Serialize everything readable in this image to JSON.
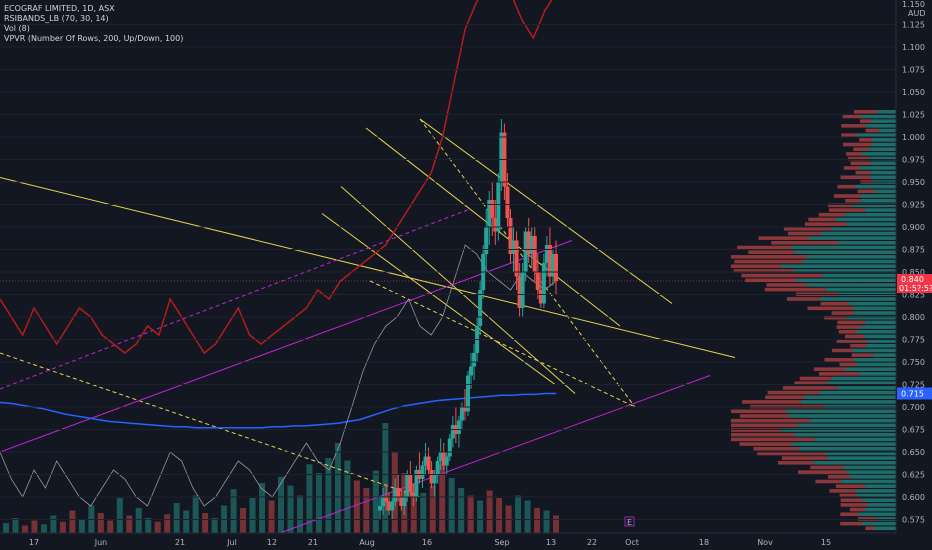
{
  "legend": {
    "title": "ECOGRAF LIMITED, 1D, ASX",
    "rsi_bands": "RSIBANDS_LB (70, 30, 14)",
    "vol": "Vol (8)",
    "vpvr": "VPVR (Number Of Rows, 200, Up/Down, 100)"
  },
  "axis": {
    "currency": "AUD",
    "top_label": "1.150"
  },
  "price_badges": {
    "last": {
      "value": "0.840",
      "countdown": "01:5?:5?",
      "color": "#f23645"
    },
    "ma": {
      "value": "0.715",
      "color": "#2962ff"
    }
  },
  "event_marker": "E",
  "colors": {
    "background": "#131722",
    "up": "#26a69a",
    "down": "#ef5350",
    "rsi_band": "#b71c1c",
    "ma": "#2962ff",
    "trend_yellow": "#e8d44d",
    "trend_magenta": "#c026d3",
    "rsi_line": "#9598a1"
  },
  "chart_data": {
    "type": "candlestick",
    "ylim": [
      0.56,
      1.15
    ],
    "y_ticks": [
      "0.575",
      "0.600",
      "0.625",
      "0.650",
      "0.675",
      "0.700",
      "0.725",
      "0.750",
      "0.775",
      "0.800",
      "0.825",
      "0.850",
      "0.875",
      "0.900",
      "0.925",
      "0.950",
      "0.975",
      "1.000",
      "1.025",
      "1.050",
      "1.075",
      "1.100",
      "1.125"
    ],
    "x_ticks": [
      "17",
      "Jun",
      "21",
      "Jul",
      "12",
      "21",
      "Aug",
      "16",
      "Sep",
      "13",
      "22",
      "Oct",
      "18",
      "Nov",
      "15"
    ],
    "candles": [
      [
        0.585,
        0.6,
        0.575,
        0.59
      ],
      [
        0.59,
        0.61,
        0.58,
        0.6
      ],
      [
        0.6,
        0.615,
        0.585,
        0.595
      ],
      [
        0.595,
        0.605,
        0.58,
        0.585
      ],
      [
        0.585,
        0.6,
        0.575,
        0.595
      ],
      [
        0.595,
        0.62,
        0.59,
        0.61
      ],
      [
        0.61,
        0.625,
        0.595,
        0.6
      ],
      [
        0.6,
        0.61,
        0.585,
        0.59
      ],
      [
        0.59,
        0.605,
        0.58,
        0.6
      ],
      [
        0.6,
        0.63,
        0.595,
        0.625
      ],
      [
        0.625,
        0.64,
        0.6,
        0.605
      ],
      [
        0.605,
        0.615,
        0.59,
        0.6
      ],
      [
        0.6,
        0.635,
        0.595,
        0.63
      ],
      [
        0.63,
        0.65,
        0.615,
        0.62
      ],
      [
        0.62,
        0.64,
        0.61,
        0.635
      ],
      [
        0.635,
        0.66,
        0.625,
        0.645
      ],
      [
        0.645,
        0.655,
        0.625,
        0.63
      ],
      [
        0.63,
        0.64,
        0.61,
        0.615
      ],
      [
        0.615,
        0.63,
        0.6,
        0.625
      ],
      [
        0.625,
        0.645,
        0.615,
        0.64
      ],
      [
        0.64,
        0.665,
        0.63,
        0.65
      ],
      [
        0.65,
        0.66,
        0.63,
        0.635
      ],
      [
        0.635,
        0.65,
        0.625,
        0.645
      ],
      [
        0.645,
        0.67,
        0.64,
        0.665
      ],
      [
        0.665,
        0.69,
        0.655,
        0.68
      ],
      [
        0.68,
        0.7,
        0.66,
        0.67
      ],
      [
        0.67,
        0.69,
        0.655,
        0.685
      ],
      [
        0.685,
        0.705,
        0.675,
        0.7
      ],
      [
        0.7,
        0.72,
        0.685,
        0.695
      ],
      [
        0.695,
        0.74,
        0.69,
        0.735
      ],
      [
        0.735,
        0.76,
        0.72,
        0.745
      ],
      [
        0.745,
        0.77,
        0.73,
        0.76
      ],
      [
        0.76,
        0.8,
        0.75,
        0.79
      ],
      [
        0.79,
        0.84,
        0.78,
        0.83
      ],
      [
        0.83,
        0.88,
        0.82,
        0.87
      ],
      [
        0.87,
        0.92,
        0.85,
        0.9
      ],
      [
        0.9,
        0.94,
        0.88,
        0.93
      ],
      [
        0.93,
        0.95,
        0.89,
        0.91
      ],
      [
        0.91,
        0.93,
        0.88,
        0.895
      ],
      [
        0.895,
        0.96,
        0.885,
        0.95
      ],
      [
        0.95,
        1.02,
        0.94,
        1.005
      ],
      [
        1.005,
        1.015,
        0.93,
        0.945
      ],
      [
        0.945,
        0.96,
        0.9,
        0.91
      ],
      [
        0.91,
        0.92,
        0.86,
        0.87
      ],
      [
        0.87,
        0.9,
        0.85,
        0.885
      ],
      [
        0.885,
        0.895,
        0.83,
        0.845
      ],
      [
        0.845,
        0.86,
        0.8,
        0.81
      ],
      [
        0.81,
        0.86,
        0.8,
        0.85
      ],
      [
        0.85,
        0.9,
        0.84,
        0.895
      ],
      [
        0.895,
        0.91,
        0.86,
        0.87
      ],
      [
        0.87,
        0.9,
        0.855,
        0.89
      ],
      [
        0.89,
        0.9,
        0.84,
        0.85
      ],
      [
        0.85,
        0.87,
        0.82,
        0.83
      ],
      [
        0.83,
        0.85,
        0.81,
        0.815
      ],
      [
        0.815,
        0.87,
        0.81,
        0.86
      ],
      [
        0.86,
        0.89,
        0.845,
        0.88
      ],
      [
        0.88,
        0.9,
        0.835,
        0.845
      ],
      [
        0.845,
        0.875,
        0.835,
        0.87
      ],
      [
        0.87,
        0.885,
        0.825,
        0.84
      ]
    ],
    "volume": [
      8,
      12,
      6,
      10,
      7,
      14,
      9,
      18,
      11,
      22,
      16,
      10,
      28,
      14,
      20,
      12,
      9,
      15,
      24,
      18,
      30,
      16,
      12,
      22,
      35,
      20,
      28,
      40,
      26,
      45,
      38,
      30,
      55,
      48,
      60,
      72,
      58,
      42,
      36,
      50,
      88,
      65,
      48,
      40,
      32,
      38,
      55,
      44,
      36,
      30,
      26,
      34,
      28,
      22,
      30,
      26,
      20,
      18,
      14
    ],
    "ma_line": [
      0.705,
      0.704,
      0.702,
      0.7,
      0.698,
      0.695,
      0.692,
      0.69,
      0.688,
      0.686,
      0.684,
      0.683,
      0.682,
      0.681,
      0.68,
      0.679,
      0.678,
      0.678,
      0.677,
      0.677,
      0.677,
      0.677,
      0.677,
      0.677,
      0.677,
      0.678,
      0.678,
      0.679,
      0.679,
      0.68,
      0.681,
      0.682,
      0.684,
      0.686,
      0.69,
      0.694,
      0.698,
      0.701,
      0.703,
      0.705,
      0.707,
      0.708,
      0.709,
      0.71,
      0.711,
      0.712,
      0.713,
      0.713,
      0.714,
      0.714,
      0.715,
      0.715
    ],
    "rsi_bands_line": [
      0.82,
      0.8,
      0.78,
      0.81,
      0.79,
      0.77,
      0.79,
      0.81,
      0.8,
      0.78,
      0.77,
      0.76,
      0.77,
      0.79,
      0.78,
      0.82,
      0.8,
      0.78,
      0.76,
      0.77,
      0.79,
      0.81,
      0.78,
      0.77,
      0.78,
      0.79,
      0.8,
      0.81,
      0.83,
      0.82,
      0.84,
      0.85,
      0.86,
      0.87,
      0.88,
      0.9,
      0.92,
      0.94,
      0.96,
      1.0,
      1.06,
      1.12,
      1.15,
      1.17,
      1.19,
      1.16,
      1.13,
      1.11,
      1.14,
      1.16
    ],
    "rsi_line": [
      0.65,
      0.62,
      0.6,
      0.63,
      0.61,
      0.64,
      0.62,
      0.6,
      0.59,
      0.61,
      0.63,
      0.62,
      0.6,
      0.59,
      0.62,
      0.65,
      0.64,
      0.61,
      0.59,
      0.6,
      0.62,
      0.64,
      0.63,
      0.61,
      0.6,
      0.62,
      0.64,
      0.66,
      0.64,
      0.63,
      0.66,
      0.7,
      0.74,
      0.77,
      0.79,
      0.8,
      0.82,
      0.79,
      0.78,
      0.8,
      0.84,
      0.88,
      0.87,
      0.85,
      0.84,
      0.83,
      0.85,
      0.84,
      0.83,
      0.84
    ]
  }
}
